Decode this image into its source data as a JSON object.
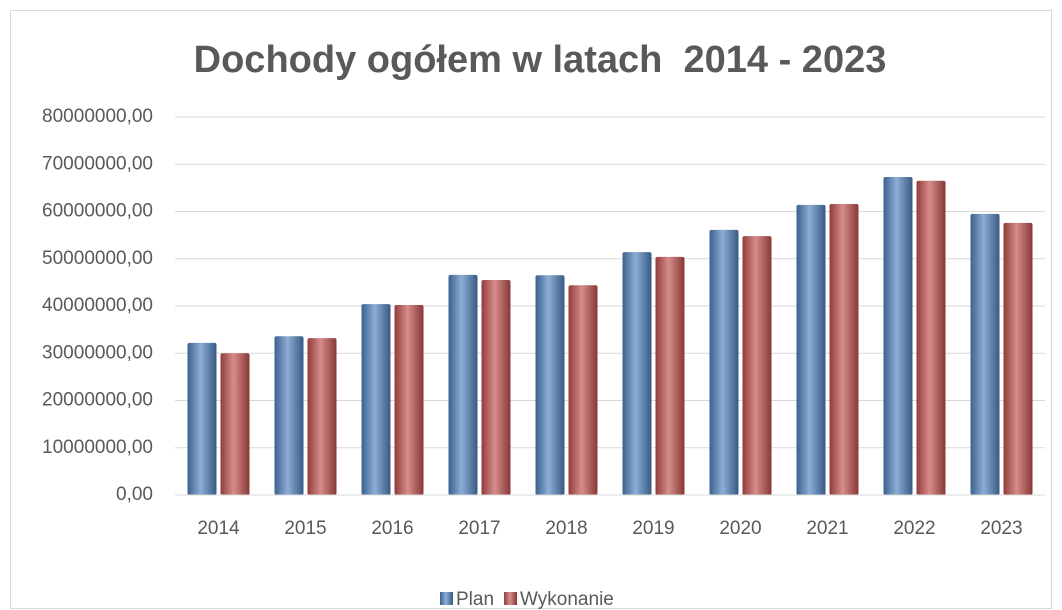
{
  "chart_data": {
    "type": "bar",
    "title": "Dochody ogółem w latach  2014 - 2023",
    "categories": [
      "2014",
      "2015",
      "2016",
      "2017",
      "2018",
      "2019",
      "2020",
      "2021",
      "2022",
      "2023"
    ],
    "series": [
      {
        "name": "Plan",
        "color": "#4f81bd",
        "values": [
          32200000,
          33600000,
          40400000,
          46600000,
          46500000,
          51400000,
          56100000,
          61400000,
          67300000,
          59500000
        ]
      },
      {
        "name": "Wykonanie",
        "color": "#c0504d",
        "values": [
          30000000,
          33200000,
          40200000,
          45500000,
          44400000,
          50400000,
          54800000,
          61600000,
          66500000,
          57600000
        ]
      }
    ],
    "ylim": [
      0,
      80000000
    ],
    "yticks": [
      {
        "value": 0,
        "label": "0,00"
      },
      {
        "value": 10000000,
        "label": "10000000,00"
      },
      {
        "value": 20000000,
        "label": "20000000,00"
      },
      {
        "value": 30000000,
        "label": "30000000,00"
      },
      {
        "value": 40000000,
        "label": "40000000,00"
      },
      {
        "value": 50000000,
        "label": "50000000,00"
      },
      {
        "value": 60000000,
        "label": "60000000,00"
      },
      {
        "value": 70000000,
        "label": "70000000,00"
      },
      {
        "value": 80000000,
        "label": "80000000,00"
      }
    ],
    "grid": true,
    "legend": "bottom"
  }
}
